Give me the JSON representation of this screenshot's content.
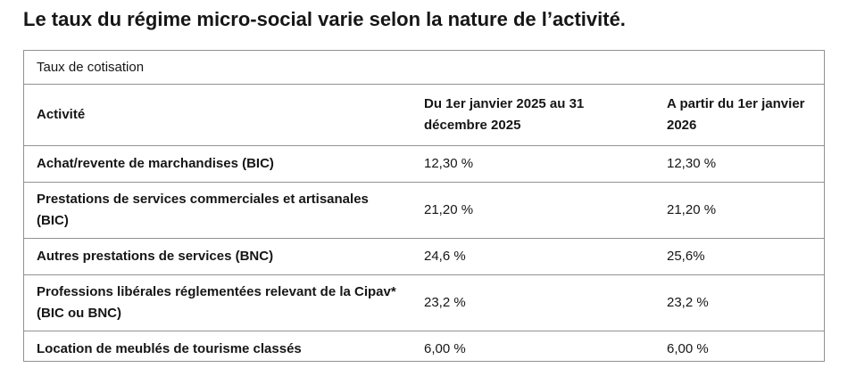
{
  "title": "Le taux du régime micro-social varie selon la nature de l’activité.",
  "table": {
    "caption": "Taux de cotisation",
    "headers": {
      "activity": "Activité",
      "period_2025": "Du 1er janvier 2025 au 31 décembre 2025",
      "period_2026": "A partir du 1er janvier 2026"
    },
    "rows": [
      {
        "activity": "Achat/revente de marchandises (BIC)",
        "rate_2025": "12,30 %",
        "rate_2026": "12,30 %"
      },
      {
        "activity": "Prestations de services commerciales et artisanales (BIC)",
        "rate_2025": "21,20 %",
        "rate_2026": "21,20 %"
      },
      {
        "activity": "Autres prestations de services (BNC)",
        "rate_2025": "24,6 %",
        "rate_2026": "25,6%"
      },
      {
        "activity": "Professions libérales réglementées relevant de la Cipav* (BIC ou BNC)",
        "rate_2025": "23,2 %",
        "rate_2026": "23,2 %"
      },
      {
        "activity": "Location de meublés de tourisme classés",
        "rate_2025": "6,00 %",
        "rate_2026": "6,00 %"
      }
    ]
  }
}
